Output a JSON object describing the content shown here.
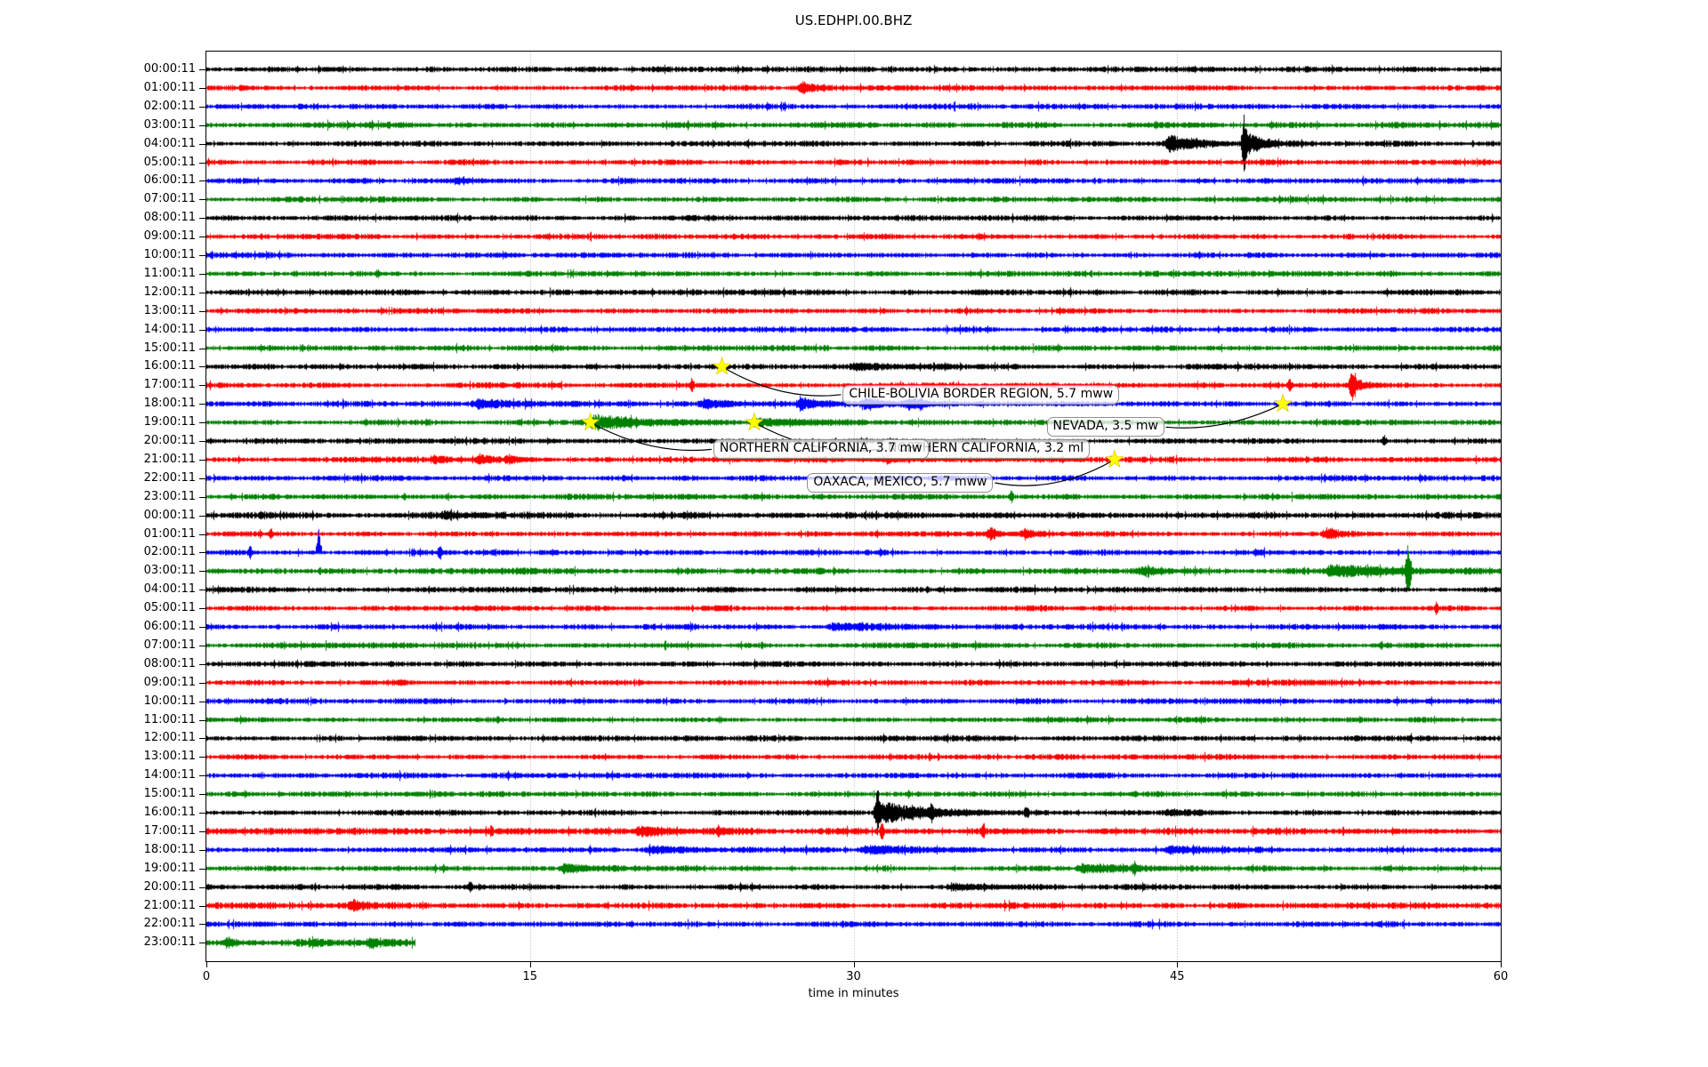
{
  "chart_data": {
    "type": "line",
    "subtype": "seismogram-dayplot",
    "title": "US.EDHPI.00.BHZ",
    "xlabel": "time in minutes",
    "xlim": [
      0,
      60
    ],
    "x_ticks": [
      0,
      15,
      30,
      45,
      60
    ],
    "grid_x_minutes": [
      15,
      30,
      45
    ],
    "grid_color": "#a9a9a9",
    "star_color": "#ffff00",
    "trace_colors_cycle": [
      "#000000",
      "#ff0000",
      "#0000ff",
      "#008000"
    ],
    "minutes_per_row": 60,
    "rows": [
      {
        "label": "00:00:11",
        "color": "#000000",
        "events": []
      },
      {
        "label": "01:00:11",
        "color": "#ff0000",
        "events": [
          {
            "type": "burst",
            "t": 27.6,
            "amp": 5,
            "decay": 0.35
          }
        ]
      },
      {
        "label": "02:00:11",
        "color": "#0000ff",
        "events": []
      },
      {
        "label": "03:00:11",
        "color": "#008000",
        "noise": 2.3,
        "events": []
      },
      {
        "label": "04:00:11",
        "color": "#000000",
        "events": [
          {
            "type": "burst",
            "t": 44.6,
            "amp": 7,
            "decay": 1.4
          },
          {
            "type": "spike",
            "t": 48.1,
            "amp": 26,
            "w": 0.18
          },
          {
            "type": "burst",
            "t": 48.3,
            "amp": 8,
            "decay": 0.7
          }
        ]
      },
      {
        "label": "05:00:11",
        "color": "#ff0000",
        "events": []
      },
      {
        "label": "06:00:11",
        "color": "#0000ff",
        "events": [
          {
            "type": "burst",
            "t": 11.5,
            "amp": 2.5,
            "decay": 1
          }
        ]
      },
      {
        "label": "07:00:11",
        "color": "#008000",
        "events": []
      },
      {
        "label": "08:00:11",
        "color": "#000000",
        "events": []
      },
      {
        "label": "09:00:11",
        "color": "#ff0000",
        "events": []
      },
      {
        "label": "10:00:11",
        "color": "#0000ff",
        "events": []
      },
      {
        "label": "11:00:11",
        "color": "#008000",
        "events": []
      },
      {
        "label": "12:00:11",
        "color": "#000000",
        "events": []
      },
      {
        "label": "13:00:11",
        "color": "#ff0000",
        "events": []
      },
      {
        "label": "14:00:11",
        "color": "#0000ff",
        "events": []
      },
      {
        "label": "15:00:11",
        "color": "#008000",
        "events": []
      },
      {
        "label": "16:00:11",
        "color": "#000000",
        "events": [
          {
            "type": "burst",
            "t": 30,
            "amp": 2,
            "decay": 3
          }
        ]
      },
      {
        "label": "17:00:11",
        "color": "#ff0000",
        "events": [
          {
            "type": "spike",
            "t": 22.5,
            "amp": 5
          },
          {
            "type": "spike",
            "t": 50.2,
            "amp": 6
          },
          {
            "type": "spike",
            "t": 53.1,
            "amp": 13,
            "w": 0.2
          },
          {
            "type": "burst",
            "t": 53.2,
            "amp": 6,
            "decay": 0.5
          }
        ]
      },
      {
        "label": "18:00:11",
        "color": "#0000ff",
        "events": [
          {
            "type": "burst",
            "t": 12.5,
            "amp": 3.5,
            "decay": 1.5
          },
          {
            "type": "burst",
            "t": 23,
            "amp": 3.5,
            "decay": 1.5
          },
          {
            "type": "burst",
            "t": 27.5,
            "amp": 4.5,
            "decay": 1
          },
          {
            "type": "burst",
            "t": 30.5,
            "amp": 5,
            "decay": 1
          },
          {
            "type": "burst",
            "t": 32.5,
            "amp": 4,
            "decay": 0.8
          }
        ]
      },
      {
        "label": "19:00:11",
        "color": "#008000",
        "events": [
          {
            "type": "burst",
            "t": 17.8,
            "amp": 5.5,
            "decay": 2.5
          },
          {
            "type": "burst",
            "t": 25.4,
            "amp": 3.5,
            "decay": 2
          }
        ]
      },
      {
        "label": "20:00:11",
        "color": "#000000",
        "events": [
          {
            "type": "spike",
            "t": 54.6,
            "amp": 4
          }
        ]
      },
      {
        "label": "21:00:11",
        "color": "#ff0000",
        "events": [
          {
            "type": "burst",
            "t": 10.5,
            "amp": 3.5,
            "decay": 0.5
          },
          {
            "type": "burst",
            "t": 12.6,
            "amp": 4.5,
            "decay": 0.6
          },
          {
            "type": "burst",
            "t": 14,
            "amp": 3.5,
            "decay": 0.5
          },
          {
            "type": "burst",
            "t": 31.5,
            "amp": 3.5,
            "decay": 0.4
          }
        ]
      },
      {
        "label": "22:00:11",
        "color": "#0000ff",
        "events": []
      },
      {
        "label": "23:00:11",
        "color": "#008000",
        "events": [
          {
            "type": "spike",
            "t": 37.3,
            "amp": 5
          }
        ]
      },
      {
        "label": "00:00:11",
        "color": "#000000",
        "noise": 2.5,
        "events": [
          {
            "type": "burst",
            "t": 11,
            "amp": 2.5,
            "decay": 1.5
          }
        ]
      },
      {
        "label": "01:00:11",
        "color": "#ff0000",
        "events": [
          {
            "type": "spike",
            "t": 3,
            "amp": 4
          },
          {
            "type": "burst",
            "t": 36.3,
            "amp": 6,
            "decay": 0.3
          },
          {
            "type": "burst",
            "t": 37.9,
            "amp": 5,
            "decay": 0.3
          },
          {
            "type": "burst",
            "t": 51.9,
            "amp": 6,
            "decay": 0.5
          }
        ]
      },
      {
        "label": "02:00:11",
        "color": "#0000ff",
        "events": [
          {
            "type": "spike",
            "t": 2,
            "amp": 5
          },
          {
            "type": "spike",
            "t": 5.2,
            "amp": 22,
            "side": "up",
            "w": 0.16
          },
          {
            "type": "spike",
            "t": 10.8,
            "amp": 6
          }
        ]
      },
      {
        "label": "03:00:11",
        "color": "#008000",
        "noise": 2.3,
        "events": [
          {
            "type": "burst",
            "t": 43.4,
            "amp": 4,
            "decay": 0.8
          },
          {
            "type": "burst",
            "t": 52,
            "amp": 4.5,
            "decay": 3
          },
          {
            "type": "spike",
            "t": 55.7,
            "amp": 27,
            "w": 0.18
          }
        ]
      },
      {
        "label": "04:00:11",
        "color": "#000000",
        "events": []
      },
      {
        "label": "05:00:11",
        "color": "#ff0000",
        "events": [
          {
            "type": "spike",
            "t": 57,
            "amp": 5
          }
        ]
      },
      {
        "label": "06:00:11",
        "color": "#0000ff",
        "events": [
          {
            "type": "burst",
            "t": 29,
            "amp": 2.5,
            "decay": 2
          }
        ]
      },
      {
        "label": "07:00:11",
        "color": "#008000",
        "events": []
      },
      {
        "label": "08:00:11",
        "color": "#000000",
        "events": []
      },
      {
        "label": "09:00:11",
        "color": "#ff0000",
        "events": []
      },
      {
        "label": "10:00:11",
        "color": "#0000ff",
        "events": []
      },
      {
        "label": "11:00:11",
        "color": "#008000",
        "events": []
      },
      {
        "label": "12:00:11",
        "color": "#000000",
        "events": []
      },
      {
        "label": "13:00:11",
        "color": "#ff0000",
        "events": []
      },
      {
        "label": "14:00:11",
        "color": "#0000ff",
        "events": []
      },
      {
        "label": "15:00:11",
        "color": "#008000",
        "events": []
      },
      {
        "label": "16:00:11",
        "color": "#000000",
        "events": [
          {
            "type": "spike",
            "t": 31.1,
            "amp": 21,
            "w": 0.22
          },
          {
            "type": "burst",
            "t": 31.3,
            "amp": 9,
            "decay": 2.2
          },
          {
            "type": "spike",
            "t": 33.6,
            "amp": 6
          },
          {
            "type": "spike",
            "t": 38,
            "amp": 5
          },
          {
            "type": "burst",
            "t": 44.5,
            "amp": 2.5,
            "decay": 1
          }
        ]
      },
      {
        "label": "17:00:11",
        "color": "#ff0000",
        "noise": 2.5,
        "events": [
          {
            "type": "spike",
            "t": 13.2,
            "amp": 4
          },
          {
            "type": "burst",
            "t": 20,
            "amp": 2.5,
            "decay": 2
          },
          {
            "type": "spike",
            "t": 23.7,
            "amp": 4
          },
          {
            "type": "spike",
            "t": 31.3,
            "amp": 8
          },
          {
            "type": "spike",
            "t": 36,
            "amp": 5
          }
        ]
      },
      {
        "label": "18:00:11",
        "color": "#0000ff",
        "events": [
          {
            "type": "burst",
            "t": 20.5,
            "amp": 2.5,
            "decay": 2
          },
          {
            "type": "burst",
            "t": 30.5,
            "amp": 3,
            "decay": 2
          },
          {
            "type": "burst",
            "t": 44.5,
            "amp": 2.5,
            "decay": 2
          }
        ]
      },
      {
        "label": "19:00:11",
        "color": "#008000",
        "events": [
          {
            "type": "burst",
            "t": 16.5,
            "amp": 3.5,
            "decay": 1.5
          },
          {
            "type": "burst",
            "t": 40.5,
            "amp": 3,
            "decay": 2
          },
          {
            "type": "spike",
            "t": 43,
            "amp": 5
          }
        ]
      },
      {
        "label": "20:00:11",
        "color": "#000000",
        "events": [
          {
            "type": "spike",
            "t": 12.2,
            "amp": 5
          },
          {
            "type": "burst",
            "t": 34.5,
            "amp": 2.5,
            "decay": 1.5
          }
        ]
      },
      {
        "label": "21:00:11",
        "color": "#ff0000",
        "noise": 2.3,
        "events": [
          {
            "type": "burst",
            "t": 6.8,
            "amp": 3.5,
            "decay": 0.6
          }
        ]
      },
      {
        "label": "22:00:11",
        "color": "#0000ff",
        "events": []
      },
      {
        "label": "23:00:11",
        "color": "#008000",
        "noise": 2.7,
        "end_min": 9.7,
        "events": [
          {
            "type": "burst",
            "t": 0.9,
            "amp": 3.5,
            "decay": 0.4
          },
          {
            "type": "burst",
            "t": 4.9,
            "amp": 3,
            "decay": 0.3
          },
          {
            "type": "burst",
            "t": 7.6,
            "amp": 4,
            "decay": 0.4
          }
        ]
      }
    ],
    "annotations": [
      {
        "text": "CHILE-BOLIVIA BORDER REGION, 5.7 mww",
        "star": {
          "min": 23.9,
          "row": 16
        },
        "box": {
          "min": 29.5,
          "row": 17.5
        },
        "attach": "left",
        "sag": 8
      },
      {
        "text": "NEVADA, 3.5 mw",
        "star": {
          "min": 49.9,
          "row": 18
        },
        "box": {
          "min": 38.95,
          "row": 19.25
        },
        "attach": "right",
        "sag": 6
      },
      {
        "text": "NORTHERN CALIFORNIA, 3.2 ml",
        "star": {
          "min": 25.4,
          "row": 19
        },
        "box": {
          "min": 31.3,
          "row": 20.45
        },
        "attach": "left",
        "sag": 9
      },
      {
        "text": "NORTHERN CALIFORNIA, 3.7 mw",
        "star": {
          "min": 17.8,
          "row": 19
        },
        "box": {
          "min": 23.5,
          "row": 20.45
        },
        "attach": "left",
        "sag": 7
      },
      {
        "text": "OAXACA, MEXICO, 5.7 mww",
        "star": {
          "min": 42.1,
          "row": 21
        },
        "box": {
          "min": 27.85,
          "row": 22.25
        },
        "attach": "right",
        "sag": 13
      }
    ]
  }
}
